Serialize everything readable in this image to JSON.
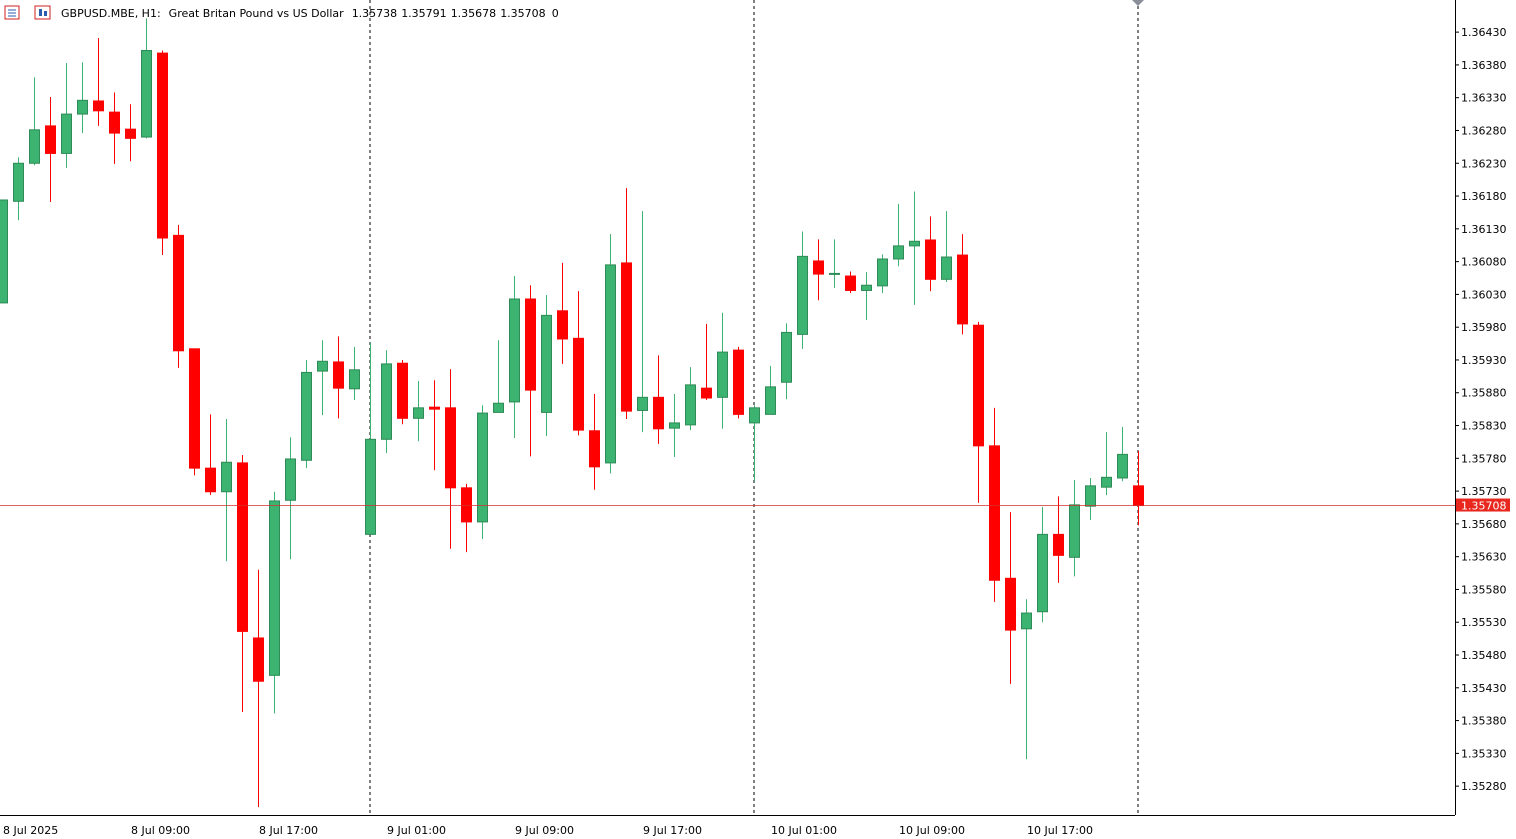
{
  "chart_data": {
    "type": "candlestick",
    "title": "GBPUSD.MBE, H1:",
    "subtitle": "Great Britan Pound vs US Dollar",
    "header_extra": 0,
    "up_color": "#3cb371",
    "down_color": "#ff0000",
    "categories": [
      "8 Jul 2025",
      null,
      null,
      null,
      null,
      null,
      null,
      null,
      "8 Jul 09:00",
      null,
      null,
      null,
      null,
      null,
      null,
      null,
      "8 Jul 17:00",
      null,
      null,
      null,
      null,
      null,
      null,
      null,
      "9 Jul 01:00",
      null,
      null,
      null,
      null,
      null,
      null,
      null,
      "9 Jul 09:00",
      null,
      null,
      null,
      null,
      null,
      null,
      null,
      "9 Jul 17:00",
      null,
      null,
      null,
      null,
      null,
      null,
      null,
      "10 Jul 01:00",
      null,
      null,
      null,
      null,
      null,
      null,
      null,
      "10 Jul 09:00",
      null,
      null,
      null,
      null,
      null,
      null,
      null,
      "10 Jul 17:00",
      null,
      null,
      null,
      null,
      null,
      null,
      null
    ],
    "open": [
      1.36017,
      1.36172,
      1.3623,
      1.36287,
      1.36245,
      1.36305,
      1.36325,
      1.36308,
      1.36282,
      1.3627,
      1.36398,
      1.3612,
      1.35947,
      1.35765,
      1.35729,
      1.35773,
      1.35506,
      1.35449,
      1.35716,
      1.35777,
      1.35913,
      1.35927,
      1.35886,
      1.35664,
      1.35809,
      1.35925,
      1.35841,
      1.35858,
      1.35857,
      1.35735,
      1.35683,
      1.3585,
      1.35866,
      1.36023,
      1.3585,
      1.36005,
      1.35963,
      1.35822,
      1.35773,
      1.36078,
      1.35853,
      1.35873,
      1.35826,
      1.35831,
      1.35887,
      1.35873,
      1.35945,
      1.35834,
      1.35847,
      1.35896,
      1.35969,
      1.36081,
      1.36062,
      1.36058,
      1.36036,
      1.36043,
      1.36084,
      1.36104,
      1.36113,
      1.36053,
      1.3609,
      1.35983,
      1.35799,
      1.35597,
      1.3552,
      1.35546,
      1.35664,
      1.35629,
      1.35707,
      1.35736,
      1.3575,
      1.35738
    ],
    "high": [
      1.36174,
      1.36239,
      1.36361,
      1.36331,
      1.36383,
      1.36384,
      1.36421,
      1.36338,
      1.3632,
      1.36451,
      1.36402,
      1.36136,
      1.35947,
      1.35847,
      1.3584,
      1.35785,
      1.3561,
      1.35729,
      1.35812,
      1.3593,
      1.3596,
      1.35966,
      1.3595,
      1.35956,
      1.35945,
      1.3593,
      1.35898,
      1.35899,
      1.35916,
      1.35741,
      1.35861,
      1.3596,
      1.36058,
      1.36044,
      1.36029,
      1.36078,
      1.36035,
      1.35878,
      1.36122,
      1.36192,
      1.36157,
      1.35937,
      1.35878,
      1.35919,
      1.35985,
      1.36002,
      1.3595,
      1.35861,
      1.35921,
      1.35986,
      1.36126,
      1.36114,
      1.36114,
      1.36065,
      1.36064,
      1.36091,
      1.36168,
      1.36187,
      1.36149,
      1.36157,
      1.36122,
      1.35988,
      1.35857,
      1.35698,
      1.35565,
      1.35706,
      1.35722,
      1.35747,
      1.3575,
      1.3582,
      1.35828,
      1.35791
    ],
    "low": [
      1.36017,
      1.36143,
      1.36227,
      1.36171,
      1.36223,
      1.36276,
      1.36287,
      1.36229,
      1.36233,
      1.36268,
      1.3609,
      1.35918,
      1.35754,
      1.35724,
      1.35623,
      1.35393,
      1.35248,
      1.35391,
      1.35626,
      1.35765,
      1.35846,
      1.35841,
      1.35869,
      1.35664,
      1.35788,
      1.35832,
      1.35806,
      1.35762,
      1.35642,
      1.35637,
      1.35657,
      1.3585,
      1.35811,
      1.35783,
      1.35814,
      1.35924,
      1.35815,
      1.35732,
      1.35757,
      1.3584,
      1.3582,
      1.35802,
      1.35782,
      1.35823,
      1.35869,
      1.35825,
      1.35841,
      1.35745,
      1.35847,
      1.3587,
      1.35947,
      1.36021,
      1.3604,
      1.36032,
      1.35991,
      1.36032,
      1.36073,
      1.36014,
      1.36035,
      1.36049,
      1.35969,
      1.35712,
      1.35561,
      1.35436,
      1.35321,
      1.3553,
      1.3559,
      1.356,
      1.35686,
      1.35724,
      1.35745,
      1.35678
    ],
    "close": [
      1.36174,
      1.3623,
      1.36281,
      1.36245,
      1.36305,
      1.36326,
      1.3631,
      1.36276,
      1.36268,
      1.36402,
      1.36116,
      1.35944,
      1.35765,
      1.35729,
      1.35774,
      1.35516,
      1.3544,
      1.35715,
      1.35779,
      1.35911,
      1.35928,
      1.35887,
      1.35915,
      1.35809,
      1.35924,
      1.35841,
      1.35857,
      1.35855,
      1.35735,
      1.35683,
      1.35849,
      1.35864,
      1.36023,
      1.35884,
      1.35998,
      1.35962,
      1.35823,
      1.35767,
      1.36075,
      1.35852,
      1.35873,
      1.35825,
      1.35834,
      1.35892,
      1.35872,
      1.35942,
      1.35847,
      1.35857,
      1.35889,
      1.35972,
      1.36088,
      1.36061,
      1.36062,
      1.36036,
      1.36044,
      1.36084,
      1.36104,
      1.36111,
      1.36053,
      1.36087,
      1.35985,
      1.35799,
      1.35594,
      1.35518,
      1.35544,
      1.35664,
      1.35632,
      1.35709,
      1.35738,
      1.35751,
      1.35786,
      1.35708
    ],
    "ylim": [
      1.35236,
      1.36479
    ],
    "yticks": [
      {
        "value": 1.3643,
        "label": "1.36430"
      },
      {
        "value": 1.3638,
        "label": "1.36380"
      },
      {
        "value": 1.3633,
        "label": "1.36330"
      },
      {
        "value": 1.3628,
        "label": "1.36280"
      },
      {
        "value": 1.3623,
        "label": "1.36230"
      },
      {
        "value": 1.3618,
        "label": "1.36180"
      },
      {
        "value": 1.3613,
        "label": "1.36130"
      },
      {
        "value": 1.3608,
        "label": "1.36080"
      },
      {
        "value": 1.3603,
        "label": "1.36030"
      },
      {
        "value": 1.3598,
        "label": "1.35980"
      },
      {
        "value": 1.3593,
        "label": "1.35930"
      },
      {
        "value": 1.3588,
        "label": "1.35880"
      },
      {
        "value": 1.3583,
        "label": "1.35830"
      },
      {
        "value": 1.3578,
        "label": "1.35780"
      },
      {
        "value": 1.3573,
        "label": "1.35730"
      },
      {
        "value": 1.3568,
        "label": "1.35680"
      },
      {
        "value": 1.3563,
        "label": "1.35630"
      },
      {
        "value": 1.3558,
        "label": "1.35580"
      },
      {
        "value": 1.3553,
        "label": "1.35530"
      },
      {
        "value": 1.3548,
        "label": "1.35480"
      },
      {
        "value": 1.3543,
        "label": "1.35430"
      },
      {
        "value": 1.3538,
        "label": "1.35380"
      },
      {
        "value": 1.3533,
        "label": "1.35330"
      },
      {
        "value": 1.3528,
        "label": "1.35280"
      }
    ]
  }
}
